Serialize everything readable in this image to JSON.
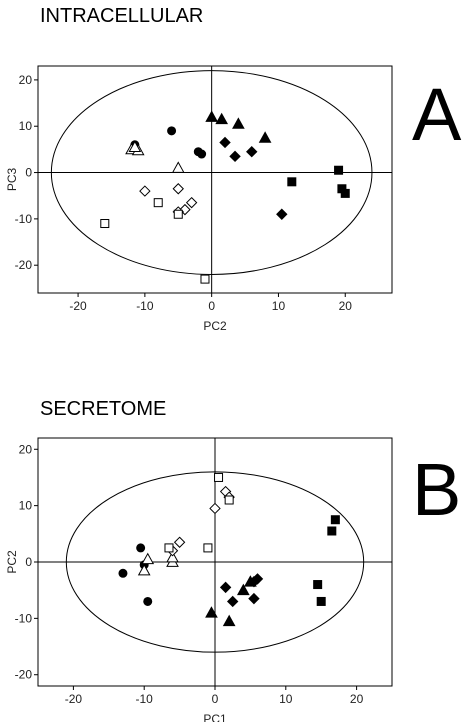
{
  "chart_data": [
    {
      "type": "scatter",
      "title": "INTRACELLULAR",
      "panel_label": "A",
      "xlabel": "PC2",
      "ylabel": "PC3",
      "xlim": [
        -26,
        27
      ],
      "ylim": [
        -26,
        23
      ],
      "xticks": [
        -20,
        -10,
        0,
        10,
        20
      ],
      "yticks": [
        -20,
        -10,
        0,
        10,
        20
      ],
      "xtick_labels": [
        "-20",
        "-10",
        "0",
        "10",
        "20"
      ],
      "ytick_labels": [
        "-20",
        "-10",
        "0",
        "10",
        "20"
      ],
      "grid": false,
      "crosshair": true,
      "ellipse": {
        "cx": 0,
        "cy": 0,
        "rx": 24,
        "ry": 22
      },
      "series": [
        {
          "marker": "circle-filled",
          "points": [
            [
              -11.5,
              6
            ],
            [
              -6,
              9
            ],
            [
              -2,
              4.5
            ],
            [
              -1.5,
              4
            ]
          ]
        },
        {
          "marker": "triangle-open",
          "points": [
            [
              -12,
              5
            ],
            [
              -11,
              4.8
            ],
            [
              -11.5,
              5.5
            ],
            [
              -5,
              1
            ]
          ]
        },
        {
          "marker": "diamond-open",
          "points": [
            [
              -10,
              -4
            ],
            [
              -5,
              -3.5
            ],
            [
              -3,
              -6.5
            ],
            [
              -4,
              -8
            ],
            [
              -5,
              -8.5
            ]
          ]
        },
        {
          "marker": "square-open",
          "points": [
            [
              -16,
              -11
            ],
            [
              -8,
              -6.5
            ],
            [
              -5,
              -9
            ],
            [
              -1,
              -23
            ]
          ]
        },
        {
          "marker": "triangle-filled",
          "points": [
            [
              0,
              12
            ],
            [
              1.5,
              11.5
            ],
            [
              4,
              10.5
            ],
            [
              8,
              7.5
            ]
          ]
        },
        {
          "marker": "diamond-filled",
          "points": [
            [
              2,
              6.5
            ],
            [
              3.5,
              3.5
            ],
            [
              6,
              4.5
            ],
            [
              10.5,
              -9
            ]
          ]
        },
        {
          "marker": "square-filled",
          "points": [
            [
              12,
              -2
            ],
            [
              19,
              0.5
            ],
            [
              19.5,
              -3.5
            ],
            [
              20,
              -4.5
            ]
          ]
        }
      ]
    },
    {
      "type": "scatter",
      "title": "SECRETOME",
      "panel_label": "B",
      "xlabel": "PC1",
      "ylabel": "PC2",
      "xlim": [
        -25,
        25
      ],
      "ylim": [
        -22,
        22
      ],
      "xticks": [
        -20,
        -10,
        0,
        10,
        20
      ],
      "yticks": [
        -20,
        -10,
        0,
        10,
        20
      ],
      "xtick_labels": [
        "-20",
        "-10",
        "0",
        "10",
        "20"
      ],
      "ytick_labels": [
        "-20",
        "-10",
        "0",
        "10",
        "20"
      ],
      "grid": false,
      "crosshair": true,
      "ellipse": {
        "cx": 0,
        "cy": 0,
        "rx": 21,
        "ry": 16
      },
      "series": [
        {
          "marker": "circle-filled",
          "points": [
            [
              -13,
              -2
            ],
            [
              -10.5,
              2.5
            ],
            [
              -10,
              -0.5
            ],
            [
              -9.5,
              -7
            ]
          ]
        },
        {
          "marker": "triangle-open",
          "points": [
            [
              -10,
              -1.5
            ],
            [
              -9.5,
              0.5
            ],
            [
              -6,
              0
            ],
            [
              -6,
              0.8
            ]
          ]
        },
        {
          "marker": "diamond-open",
          "points": [
            [
              -6,
              2
            ],
            [
              -5,
              3.5
            ],
            [
              0,
              9.5
            ],
            [
              1.5,
              12.5
            ],
            [
              2,
              11.5
            ]
          ]
        },
        {
          "marker": "square-open",
          "points": [
            [
              -6.5,
              2.5
            ],
            [
              -1,
              2.5
            ],
            [
              0.5,
              15
            ],
            [
              2,
              11
            ]
          ]
        },
        {
          "marker": "triangle-filled",
          "points": [
            [
              -0.5,
              -9
            ],
            [
              2,
              -10.5
            ],
            [
              4,
              -5
            ],
            [
              5,
              -3.5
            ]
          ]
        },
        {
          "marker": "diamond-filled",
          "points": [
            [
              1.5,
              -4.5
            ],
            [
              2.5,
              -7
            ],
            [
              5.5,
              -6.5
            ],
            [
              5.5,
              -3.5
            ],
            [
              6,
              -3
            ]
          ]
        },
        {
          "marker": "square-filled",
          "points": [
            [
              14.5,
              -4
            ],
            [
              15,
              -7
            ],
            [
              16.5,
              5.5
            ],
            [
              17,
              7.5
            ]
          ]
        }
      ]
    }
  ]
}
